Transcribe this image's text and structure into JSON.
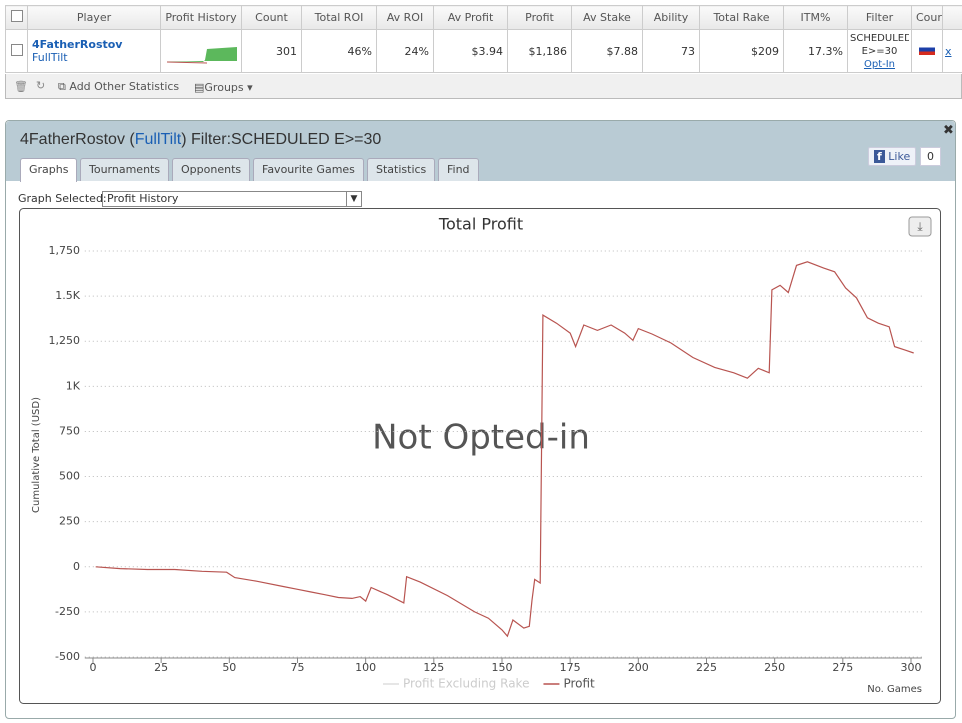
{
  "grid_table": {
    "headers": [
      "Player",
      "Profit History",
      "Count",
      "Total ROI",
      "Av ROI",
      "Av Profit",
      "Profit",
      "Av Stake",
      "Ability",
      "Total Rake",
      "ITM%",
      "Filter",
      "Cour"
    ],
    "row": {
      "player": "4FatherRostov",
      "network": "FullTilt",
      "cells": [
        "301",
        "46%",
        "24%",
        "$3.94",
        "$1,186",
        "$7.88",
        "73",
        "$209",
        "17.3%"
      ],
      "filter": [
        "SCHEDULED",
        "E>=30"
      ],
      "opt_in": "Opt-In",
      "remove": "x"
    }
  },
  "toolbar": {
    "add_stats": "Add Other Statistics",
    "groups": "Groups"
  },
  "panel": {
    "title": [
      "4FatherRostov (",
      "FullTilt",
      ") Filter:SCHEDULED E>=30"
    ],
    "tabs": [
      "Graphs",
      "Tournaments",
      "Opponents",
      "Favourite Games",
      "Statistics",
      "Find"
    ],
    "like": "Like",
    "like_count": "0",
    "graph_selected_label": "Graph Selected:",
    "graph_selected": "Profit History"
  },
  "chart_data": {
    "type": "line",
    "title": "Total Profit",
    "watermark": "Not Opted-in",
    "x_label": "No. Games",
    "y_label": "Cumulative Total (USD)",
    "xlim": [
      -3,
      304
    ],
    "xticks": [
      0,
      25,
      50,
      75,
      100,
      125,
      150,
      175,
      200,
      225,
      250,
      275,
      300
    ],
    "ylim": [
      -500,
      1750
    ],
    "yticks": [
      {
        "value": -500,
        "label": "-500"
      },
      {
        "value": -250,
        "label": "-250"
      },
      0,
      250,
      500,
      750,
      {
        "value": 1000,
        "label": "1K"
      },
      {
        "value": 1250,
        "label": "1,250"
      },
      {
        "value": 1500,
        "label": "1.5K"
      },
      {
        "value": 1750,
        "label": "1,750"
      }
    ],
    "grid": true,
    "x": [
      1,
      10,
      20,
      30,
      40,
      49,
      52,
      60,
      70,
      75,
      80,
      85,
      90,
      95,
      98,
      100,
      102,
      108,
      114,
      115,
      120,
      130,
      140,
      145,
      150,
      152,
      154,
      158,
      160,
      161,
      162,
      164,
      165,
      170,
      175,
      177,
      180,
      185,
      190,
      195,
      198,
      200,
      205,
      212,
      220,
      228,
      235,
      240,
      244,
      248,
      249,
      252,
      255,
      258,
      262,
      268,
      272,
      276,
      280,
      284,
      288,
      292,
      294,
      298,
      301
    ],
    "series": [
      {
        "name": "Profit Excluding Rake",
        "color": "#dddddd",
        "visible": false
      },
      {
        "name": "Profit",
        "color": "#b85450",
        "visible": true,
        "values": [
          0,
          -10,
          -15,
          -15,
          -25,
          -30,
          -60,
          -80,
          -110,
          -125,
          -140,
          -155,
          -170,
          -175,
          -165,
          -190,
          -115,
          -155,
          -200,
          -55,
          -85,
          -160,
          -250,
          -285,
          -350,
          -385,
          -295,
          -340,
          -330,
          -185,
          -70,
          -90,
          1395,
          1350,
          1295,
          1220,
          1340,
          1310,
          1340,
          1295,
          1255,
          1320,
          1290,
          1240,
          1160,
          1105,
          1075,
          1045,
          1100,
          1075,
          1535,
          1560,
          1520,
          1670,
          1690,
          1655,
          1635,
          1545,
          1490,
          1380,
          1350,
          1330,
          1220,
          1200,
          1185
        ]
      }
    ]
  }
}
